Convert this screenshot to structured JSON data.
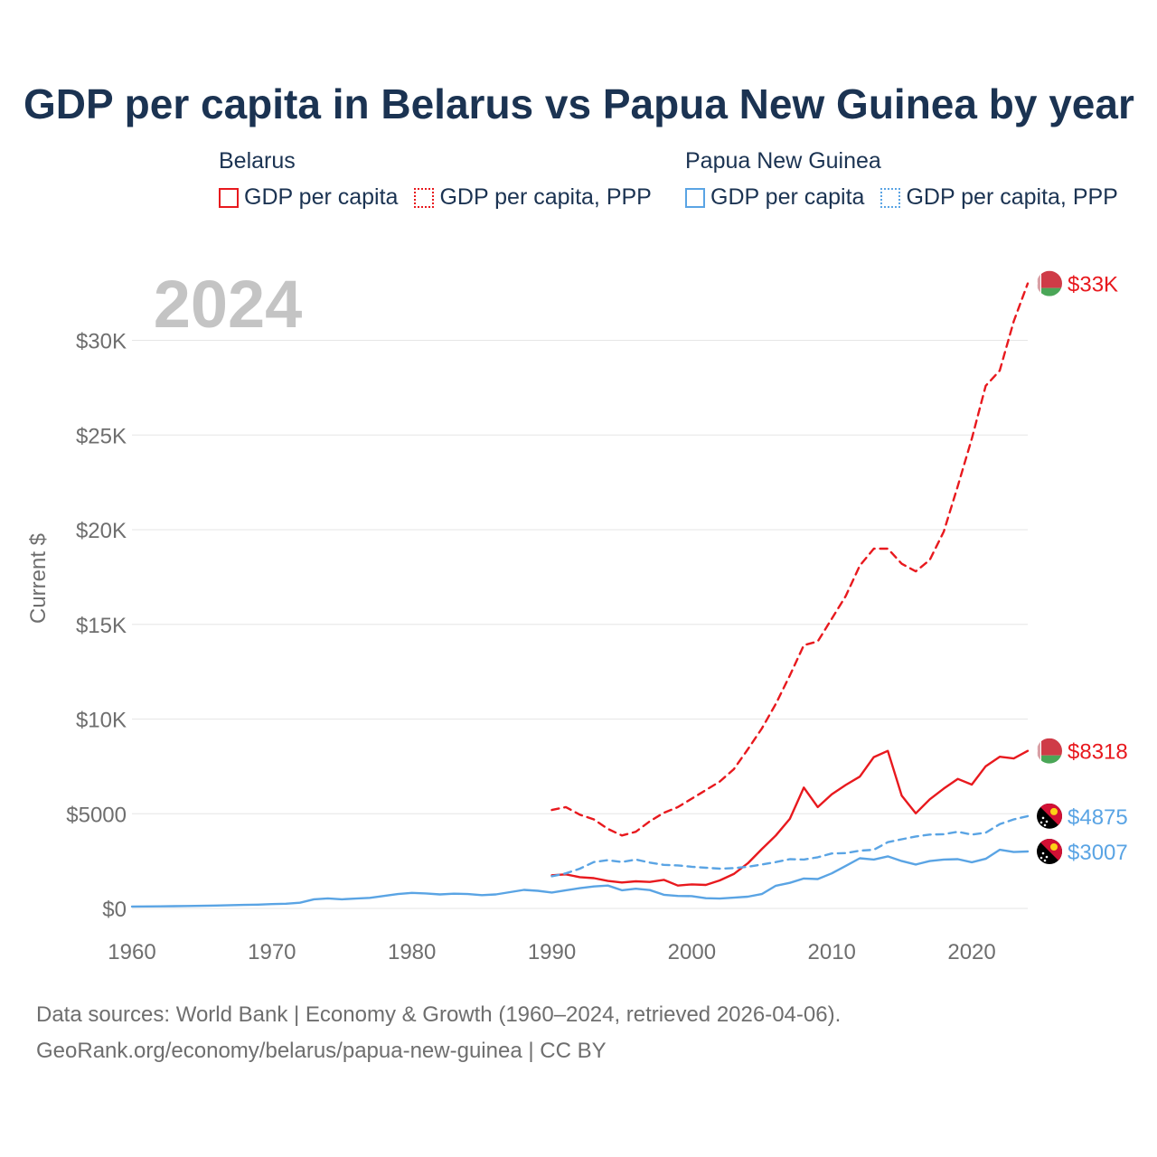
{
  "title": "GDP per capita in Belarus vs Papua New Guinea by year",
  "legend": {
    "groups": [
      {
        "name": "Belarus",
        "items": [
          "GDP per capita",
          "GDP per capita, PPP"
        ],
        "color": "#e8191e"
      },
      {
        "name": "Papua New Guinea",
        "items": [
          "GDP per capita",
          "GDP per capita, PPP"
        ],
        "color": "#5aa4e4"
      }
    ]
  },
  "footer": {
    "line1": "Data sources: World Bank | Economy & Growth (1960–2024, retrieved 2026-04-06).",
    "line2": "GeoRank.org/economy/belarus/papua-new-guinea | CC BY"
  },
  "colors": {
    "belarus": "#e8191e",
    "png": "#5aa4e4",
    "grid": "#e6e6e6",
    "axis_text": "#6e6e6e",
    "year": "#c4c4c4"
  },
  "chart_data": {
    "type": "line",
    "year_label": "2024",
    "ylabel": "Current $",
    "xlim": [
      1960,
      2024
    ],
    "ylim": [
      0,
      33000
    ],
    "x_ticks": [
      1960,
      1970,
      1980,
      1990,
      2000,
      2010,
      2020
    ],
    "x_tick_labels": [
      "1960",
      "1970",
      "1980",
      "1990",
      "2000",
      "2010",
      "2020"
    ],
    "y_ticks": [
      0,
      5000,
      10000,
      15000,
      20000,
      25000,
      30000
    ],
    "y_tick_labels": [
      "$0",
      "$5000",
      "$10K",
      "$15K",
      "$20K",
      "$25K",
      "$30K"
    ],
    "series": [
      {
        "name": "Belarus GDP per capita, PPP",
        "country": "Belarus",
        "style": "dashed",
        "color": "#e8191e",
        "end_label": "$33K",
        "x": [
          1990,
          1991,
          1992,
          1993,
          1994,
          1995,
          1996,
          1997,
          1998,
          1999,
          2000,
          2001,
          2002,
          2003,
          2004,
          2005,
          2006,
          2007,
          2008,
          2009,
          2010,
          2011,
          2012,
          2013,
          2014,
          2015,
          2016,
          2017,
          2018,
          2019,
          2020,
          2021,
          2022,
          2023,
          2024
        ],
        "values": [
          5200,
          5350,
          4950,
          4700,
          4200,
          3850,
          4050,
          4600,
          5050,
          5350,
          5800,
          6250,
          6700,
          7350,
          8400,
          9500,
          10800,
          12300,
          13900,
          14100,
          15300,
          16500,
          18100,
          19000,
          19000,
          18200,
          17800,
          18400,
          19900,
          22300,
          24800,
          27600,
          28400,
          31000,
          33000
        ]
      },
      {
        "name": "Belarus GDP per capita",
        "country": "Belarus",
        "style": "solid",
        "color": "#e8191e",
        "end_label": "$8318",
        "x": [
          1990,
          1991,
          1992,
          1993,
          1994,
          1995,
          1996,
          1997,
          1998,
          1999,
          2000,
          2001,
          2002,
          2003,
          2004,
          2005,
          2006,
          2007,
          2008,
          2009,
          2010,
          2011,
          2012,
          2013,
          2014,
          2015,
          2016,
          2017,
          2018,
          2019,
          2020,
          2021,
          2022,
          2023,
          2024
        ],
        "values": [
          1750,
          1800,
          1650,
          1600,
          1450,
          1370,
          1430,
          1400,
          1510,
          1210,
          1270,
          1240,
          1480,
          1820,
          2380,
          3130,
          3850,
          4730,
          6380,
          5350,
          6030,
          6520,
          6960,
          7990,
          8320,
          5950,
          5020,
          5760,
          6330,
          6840,
          6540,
          7510,
          8010,
          7920,
          8318
        ]
      },
      {
        "name": "Papua New Guinea GDP per capita, PPP",
        "country": "Papua New Guinea",
        "style": "dashed",
        "color": "#5aa4e4",
        "end_label": "$4875",
        "x": [
          1990,
          1991,
          1992,
          1993,
          1994,
          1995,
          1996,
          1997,
          1998,
          1999,
          2000,
          2001,
          2002,
          2003,
          2004,
          2005,
          2006,
          2007,
          2008,
          2009,
          2010,
          2011,
          2012,
          2013,
          2014,
          2015,
          2016,
          2017,
          2018,
          2019,
          2020,
          2021,
          2022,
          2023,
          2024
        ],
        "values": [
          1700,
          1850,
          2100,
          2450,
          2550,
          2450,
          2580,
          2420,
          2300,
          2270,
          2200,
          2150,
          2100,
          2130,
          2200,
          2320,
          2450,
          2600,
          2580,
          2700,
          2900,
          2920,
          3050,
          3100,
          3500,
          3650,
          3800,
          3900,
          3920,
          4050,
          3900,
          4000,
          4450,
          4700,
          4875
        ]
      },
      {
        "name": "Papua New Guinea GDP per capita",
        "country": "Papua New Guinea",
        "style": "solid",
        "color": "#5aa4e4",
        "end_label": "$3007",
        "x": [
          1960,
          1961,
          1962,
          1963,
          1964,
          1965,
          1966,
          1967,
          1968,
          1969,
          1970,
          1971,
          1972,
          1973,
          1974,
          1975,
          1976,
          1977,
          1978,
          1979,
          1980,
          1981,
          1982,
          1983,
          1984,
          1985,
          1986,
          1987,
          1988,
          1989,
          1990,
          1991,
          1992,
          1993,
          1994,
          1995,
          1996,
          1997,
          1998,
          1999,
          2000,
          2001,
          2002,
          2003,
          2004,
          2005,
          2006,
          2007,
          2008,
          2009,
          2010,
          2011,
          2012,
          2013,
          2014,
          2015,
          2016,
          2017,
          2018,
          2019,
          2020,
          2021,
          2022,
          2023,
          2024
        ],
        "values": [
          100,
          105,
          110,
          120,
          130,
          140,
          155,
          170,
          185,
          200,
          230,
          250,
          300,
          480,
          530,
          480,
          520,
          560,
          660,
          760,
          820,
          790,
          740,
          780,
          760,
          700,
          740,
          860,
          980,
          930,
          840,
          960,
          1070,
          1160,
          1210,
          960,
          1040,
          970,
          720,
          660,
          650,
          540,
          520,
          570,
          620,
          760,
          1200,
          1350,
          1580,
          1550,
          1850,
          2250,
          2650,
          2580,
          2750,
          2500,
          2320,
          2500,
          2580,
          2600,
          2440,
          2620,
          3100,
          2980,
          3007
        ]
      }
    ]
  }
}
